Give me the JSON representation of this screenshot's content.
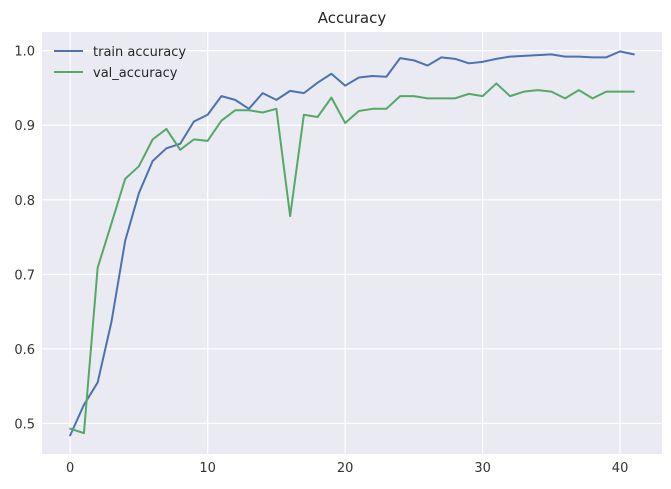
{
  "chart_data": {
    "type": "line",
    "title": "Accuracy",
    "xlabel": "",
    "ylabel": "",
    "xlim": [
      -2.05,
      43.05
    ],
    "ylim": [
      0.459,
      1.025
    ],
    "x_ticks": [
      0,
      10,
      20,
      30,
      40
    ],
    "y_ticks": [
      0.5,
      0.6,
      0.7,
      0.8,
      0.9,
      1.0
    ],
    "y_tick_labels": [
      "0.5",
      "0.6",
      "0.7",
      "0.8",
      "0.9",
      "1.0"
    ],
    "grid": true,
    "legend_position": "upper-left",
    "background": "#eaeaf2",
    "grid_color": "#ffffff",
    "x": [
      0,
      1,
      2,
      3,
      4,
      5,
      6,
      7,
      8,
      9,
      10,
      11,
      12,
      13,
      14,
      15,
      16,
      17,
      18,
      19,
      20,
      21,
      22,
      23,
      24,
      25,
      26,
      27,
      28,
      29,
      30,
      31,
      32,
      33,
      34,
      35,
      36,
      37,
      38,
      39,
      40,
      41
    ],
    "series": [
      {
        "name": "train accuracy",
        "color": "#4c72b0",
        "values": [
          0.484,
          0.525,
          0.555,
          0.636,
          0.745,
          0.809,
          0.852,
          0.869,
          0.875,
          0.905,
          0.914,
          0.939,
          0.934,
          0.922,
          0.943,
          0.934,
          0.946,
          0.943,
          0.957,
          0.969,
          0.953,
          0.964,
          0.966,
          0.965,
          0.99,
          0.987,
          0.98,
          0.991,
          0.989,
          0.983,
          0.985,
          0.989,
          0.992,
          0.993,
          0.994,
          0.995,
          0.992,
          0.992,
          0.991,
          0.991,
          0.999,
          0.995
        ]
      },
      {
        "name": "val_accuracy",
        "color": "#55a868",
        "values": [
          0.493,
          0.487,
          0.709,
          0.768,
          0.828,
          0.845,
          0.881,
          0.895,
          0.867,
          0.881,
          0.879,
          0.906,
          0.92,
          0.92,
          0.917,
          0.922,
          0.778,
          0.914,
          0.911,
          0.937,
          0.903,
          0.919,
          0.922,
          0.922,
          0.939,
          0.939,
          0.936,
          0.936,
          0.936,
          0.942,
          0.939,
          0.956,
          0.939,
          0.945,
          0.947,
          0.945,
          0.936,
          0.947,
          0.936,
          0.945,
          0.945,
          0.945
        ]
      }
    ]
  }
}
